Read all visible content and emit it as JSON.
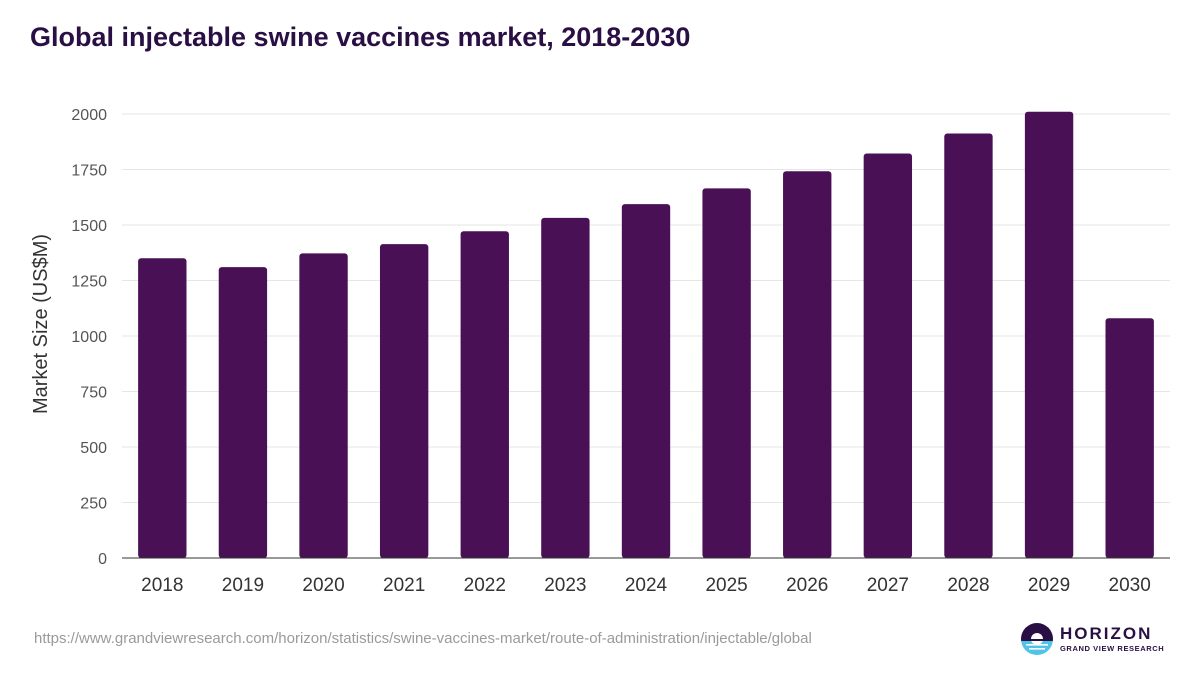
{
  "chart_data": {
    "type": "bar",
    "title": "Global injectable swine vaccines market, 2018-2030",
    "xlabel": "",
    "ylabel": "Market Size (US$M)",
    "categories": [
      "2018",
      "2019",
      "2020",
      "2021",
      "2022",
      "2023",
      "2024",
      "2025",
      "2026",
      "2027",
      "2028",
      "2029",
      "2030"
    ],
    "values": [
      1350,
      1310,
      1372,
      1414,
      1472,
      1532,
      1594,
      1665,
      1742,
      1822,
      1912,
      2010,
      1080
    ],
    "ylim": [
      0,
      2000
    ],
    "yticks": [
      0,
      250,
      500,
      750,
      1000,
      1250,
      1500,
      1750,
      2000
    ],
    "grid": true,
    "legend": "none",
    "bar_color": "#4a1055"
  },
  "footer": {
    "source_url": "https://www.grandviewresearch.com/horizon/statistics/swine-vaccines-market/route-of-administration/injectable/global",
    "brand_name": "HORIZON",
    "brand_sub": "GRAND VIEW RESEARCH"
  },
  "colors": {
    "title": "#2a0f45",
    "logo_dark": "#2a0f45",
    "logo_light": "#4fc3e8"
  }
}
